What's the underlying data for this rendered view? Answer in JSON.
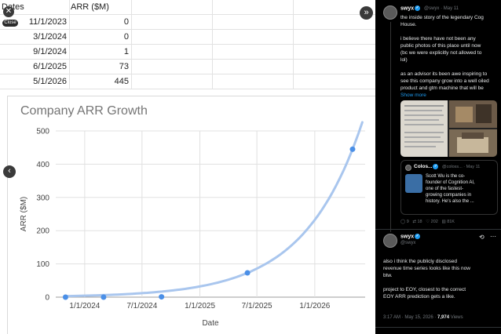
{
  "sheet": {
    "headers": [
      "Dates",
      "ARR ($M)"
    ],
    "rows": [
      [
        "11/1/2023",
        "0"
      ],
      [
        "3/1/2024",
        "0"
      ],
      [
        "9/1/2024",
        "1"
      ],
      [
        "6/1/2025",
        "73"
      ],
      [
        "5/1/2026",
        "445"
      ]
    ],
    "close_label": "Close"
  },
  "chart_data": {
    "type": "scatter",
    "title": "Company ARR Growth",
    "xlabel": "Date",
    "ylabel": "ARR ($M)",
    "x": [
      "2023-11-01",
      "2024-03-01",
      "2024-09-01",
      "2025-06-01",
      "2026-05-01"
    ],
    "y": [
      0,
      0,
      1,
      73,
      445
    ],
    "trendline": "exponential",
    "x_tick_labels": [
      "1/1/2024",
      "7/1/2024",
      "1/1/2025",
      "7/1/2025",
      "1/1/2026"
    ],
    "x_ticks": [
      "2024-01-01",
      "2024-07-01",
      "2025-01-01",
      "2025-07-01",
      "2026-01-01"
    ],
    "y_ticks": [
      0,
      100,
      200,
      300,
      400,
      500
    ],
    "ylim": [
      0,
      500
    ],
    "grid": true,
    "point_color": "#4a8fe7",
    "trend_color": "#a9c6ee"
  },
  "tweet1": {
    "name": "swyx",
    "handle": "@swyx",
    "date": "May 11",
    "text_lines": [
      "the inside story of the legendary Cog",
      "House.",
      "",
      "i believe there have not been any",
      "public photos of this place until now",
      "(bc we were explicitly not allowed to",
      "lol)",
      "",
      "as an advisor its been awe inspiring to",
      "see this company grow into a well oiled",
      "product and gtm machine that will be"
    ],
    "show_more": "Show more"
  },
  "quote": {
    "name": "Colos...",
    "handle": "@coloss...",
    "date": "May 11",
    "text_lines": [
      "Scott Wu is the co-",
      "founder of Cognition AI,",
      "one of the fastest-",
      "growing companies in",
      "history. He's also the ..."
    ]
  },
  "tweet1_actions": [
    "9",
    "18",
    "202",
    "81K"
  ],
  "tweet2": {
    "name": "swyx",
    "handle": "@swyx",
    "text_lines": [
      "also i think the publicly disclosed",
      "revenue time series looks like this now",
      "btw.",
      "",
      "project to EOY, closest to the correct",
      "EOY ARR prediction gets a like."
    ],
    "timestamp": "3:17 AM · May 15, 2026",
    "views": "7,974",
    "views_label": "Views"
  },
  "colors": {
    "twitter_blue": "#1d9bf0",
    "dark_bg": "#000000"
  }
}
